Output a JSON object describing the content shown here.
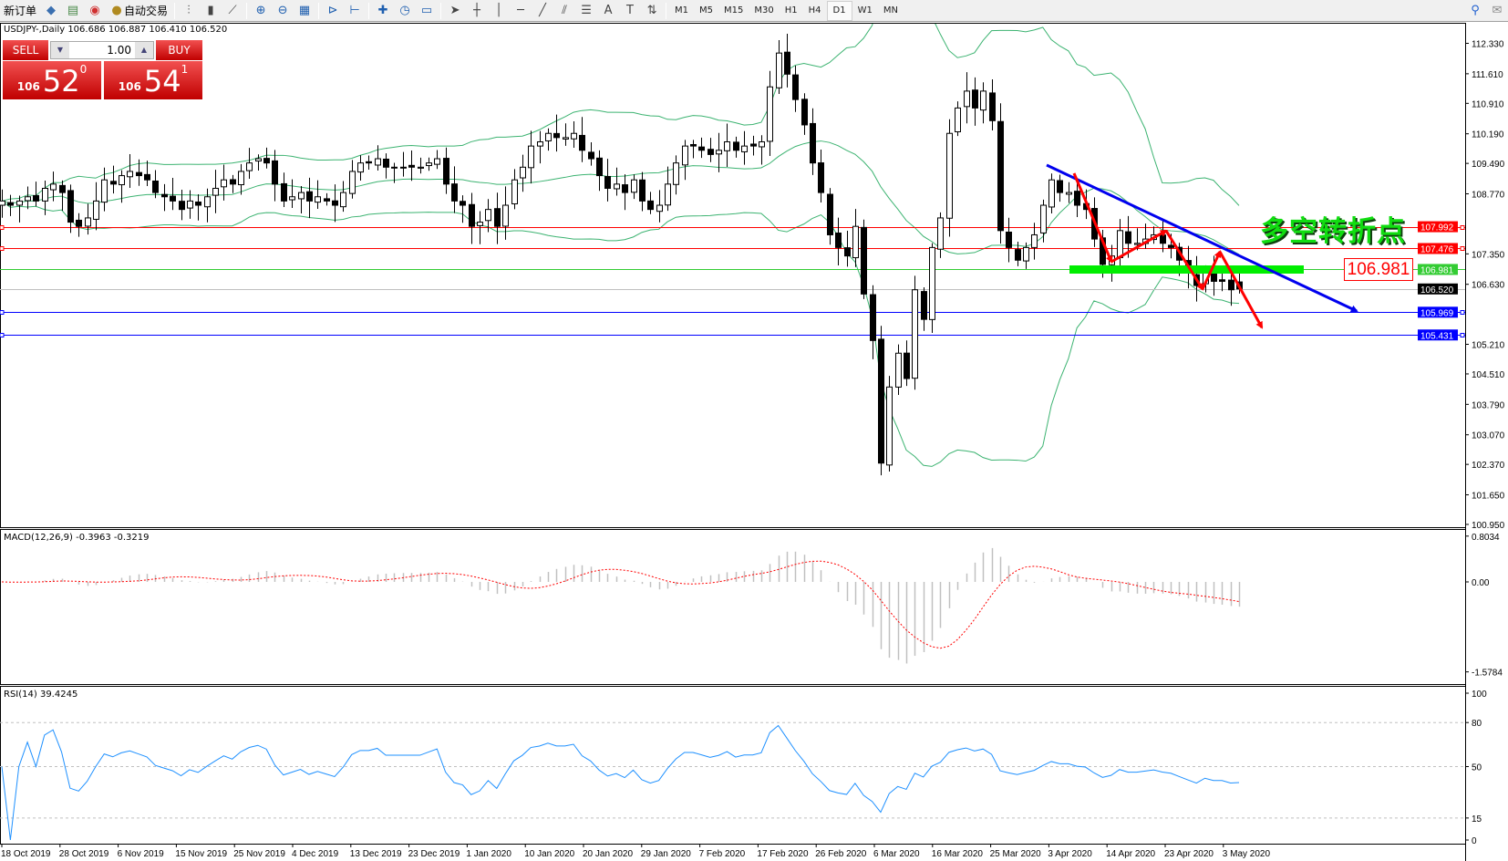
{
  "toolbar": {
    "items": [
      {
        "label": "新订单",
        "icon": "new-order-icon"
      },
      {
        "label": "",
        "icon": "metaeditor-icon",
        "glyph": "◆"
      },
      {
        "label": "",
        "icon": "data-window-icon",
        "glyph": "▤"
      },
      {
        "label": "",
        "icon": "signals-icon",
        "glyph": "◉"
      },
      {
        "label": "自动交易",
        "icon": "autotrading-icon",
        "glyph": "●"
      }
    ],
    "tools": [
      {
        "icon": "bar-chart-icon",
        "glyph": "⫶"
      },
      {
        "icon": "candlestick-icon",
        "glyph": "▮"
      },
      {
        "icon": "line-chart-icon",
        "glyph": "⟋"
      },
      {
        "icon": "zoom-in-icon",
        "glyph": "⊕"
      },
      {
        "icon": "zoom-out-icon",
        "glyph": "⊖"
      },
      {
        "icon": "tile-windows-icon",
        "glyph": "▦"
      },
      {
        "icon": "auto-scroll-icon",
        "glyph": "⊳"
      },
      {
        "icon": "chart-shift-icon",
        "glyph": "⊢"
      },
      {
        "icon": "indicators-icon",
        "glyph": "✚"
      },
      {
        "icon": "periods-icon",
        "glyph": "◷"
      },
      {
        "icon": "templates-icon",
        "glyph": "▭"
      },
      {
        "icon": "cursor-icon",
        "glyph": "➤"
      },
      {
        "icon": "crosshair-icon",
        "glyph": "┼"
      },
      {
        "icon": "vertical-line-icon",
        "glyph": "│"
      },
      {
        "icon": "horizontal-line-icon",
        "glyph": "─"
      },
      {
        "icon": "trendline-icon",
        "glyph": "╱"
      },
      {
        "icon": "equidistant-channel-icon",
        "glyph": "⫽"
      },
      {
        "icon": "fibonacci-icon",
        "glyph": "☰"
      },
      {
        "icon": "text-icon",
        "glyph": "A"
      },
      {
        "icon": "text-label-icon",
        "glyph": "T"
      },
      {
        "icon": "arrows-icon",
        "glyph": "⇅"
      }
    ],
    "timeframes": [
      "M1",
      "M5",
      "M15",
      "M30",
      "H1",
      "H4",
      "D1",
      "W1",
      "MN"
    ],
    "active_timeframe": "D1"
  },
  "chart": {
    "header": "USDJPY-,Daily  106.686 106.887 106.410 106.520",
    "annotation": "多空转折点",
    "annotation_price": "106.981",
    "macd_label": "MACD(12,26,9) -0.3963 -0.3219",
    "rsi_label": "RSI(14) 39.4245"
  },
  "trade_panel": {
    "sell_label": "SELL",
    "buy_label": "BUY",
    "lot": "1.00",
    "sell_price": {
      "big": "106",
      "main": "52",
      "tick": "0"
    },
    "buy_price": {
      "big": "106",
      "main": "54",
      "tick": "1"
    }
  },
  "colors": {
    "bull": "#ffffff",
    "bear": "#000000",
    "bands": "#3cb371",
    "macd_signal": "#ff0000",
    "macd_hist": "#c0c0c0",
    "rsi": "#1e90ff",
    "trend": "#0000ee",
    "zigzag": "#ff0000",
    "support": "#00ee00"
  },
  "chart_data": {
    "type": "candlestick",
    "symbol": "USDJPY-",
    "timeframe": "Daily",
    "last_ohlc": {
      "open": 106.686,
      "high": 106.887,
      "low": 106.41,
      "close": 106.52
    },
    "closes": [
      108.6,
      108.5,
      108.6,
      108.7,
      108.6,
      108.9,
      109.0,
      108.8,
      108.1,
      108.0,
      108.2,
      108.6,
      109.1,
      109.0,
      109.2,
      109.3,
      109.2,
      109.1,
      108.8,
      108.7,
      108.6,
      108.4,
      108.6,
      108.5,
      108.7,
      108.9,
      109.1,
      109.0,
      109.3,
      109.5,
      109.6,
      109.5,
      109.0,
      108.6,
      108.7,
      108.8,
      108.6,
      108.7,
      108.6,
      108.5,
      108.8,
      109.3,
      109.5,
      109.5,
      109.6,
      109.4,
      109.4,
      109.4,
      109.4,
      109.4,
      109.5,
      109.6,
      109.0,
      108.6,
      108.5,
      108.0,
      108.1,
      108.4,
      108.0,
      108.5,
      109.1,
      109.4,
      109.9,
      110.0,
      110.2,
      110.1,
      110.1,
      110.2,
      109.8,
      109.6,
      109.2,
      108.9,
      109.0,
      108.8,
      109.1,
      108.6,
      108.4,
      108.5,
      109.0,
      109.5,
      109.9,
      109.9,
      109.8,
      109.7,
      109.8,
      110.0,
      109.8,
      109.9,
      109.9,
      110.0,
      111.3,
      112.1,
      111.6,
      111.0,
      110.4,
      109.5,
      108.8,
      107.8,
      107.5,
      107.3,
      108.0,
      106.4,
      105.3,
      102.4,
      104.2,
      105.0,
      104.4,
      106.5,
      105.8,
      107.5,
      108.2,
      110.2,
      110.8,
      111.2,
      110.8,
      111.2,
      110.5,
      107.9,
      107.5,
      107.2,
      107.5,
      107.8,
      108.5,
      109.1,
      108.8,
      108.8,
      108.5,
      108.4,
      107.7,
      107.1,
      107.3,
      107.9,
      107.6,
      107.6,
      107.7,
      107.8,
      107.6,
      107.5,
      107.2,
      106.9,
      106.6,
      106.9,
      106.7,
      106.7,
      106.5,
      106.52
    ],
    "indicators": [
      "Bollinger Bands(20,2)",
      "MACD(12,26,9)",
      "RSI(14)"
    ],
    "price_axis": [
      "112.330",
      "111.610",
      "110.910",
      "110.190",
      "109.490",
      "108.770",
      "107.350",
      "106.630",
      "105.210",
      "104.510",
      "103.790",
      "103.070",
      "102.370",
      "101.650",
      "100.950"
    ],
    "price_range": [
      100.95,
      112.33
    ],
    "horizontal_lines": [
      {
        "price": "107.992",
        "color": "#ff0000"
      },
      {
        "price": "107.476",
        "color": "#ff0000"
      },
      {
        "price": "106.981",
        "color": "#33cc33"
      },
      {
        "price": "106.520",
        "color": "#000000",
        "line": "#c0c0c0"
      },
      {
        "price": "105.969",
        "color": "#0000ff"
      },
      {
        "price": "105.431",
        "color": "#0000ff"
      }
    ],
    "macd_axis": [
      "0.8034",
      "0.00",
      "-1.5784"
    ],
    "macd_range": [
      -1.5784,
      0.8034
    ],
    "rsi_axis": [
      "100",
      "80",
      "50",
      "15",
      "0"
    ],
    "rsi_levels": [
      80,
      50,
      15
    ],
    "date_axis": [
      "18 Oct 2019",
      "28 Oct 2019",
      "6 Nov 2019",
      "15 Nov 2019",
      "25 Nov 2019",
      "4 Dec 2019",
      "13 Dec 2019",
      "23 Dec 2019",
      "1 Jan 2020",
      "10 Jan 2020",
      "20 Jan 2020",
      "29 Jan 2020",
      "7 Feb 2020",
      "17 Feb 2020",
      "26 Feb 2020",
      "6 Mar 2020",
      "16 Mar 2020",
      "25 Mar 2020",
      "3 Apr 2020",
      "14 Apr 2020",
      "23 Apr 2020",
      "3 May 2020"
    ]
  }
}
